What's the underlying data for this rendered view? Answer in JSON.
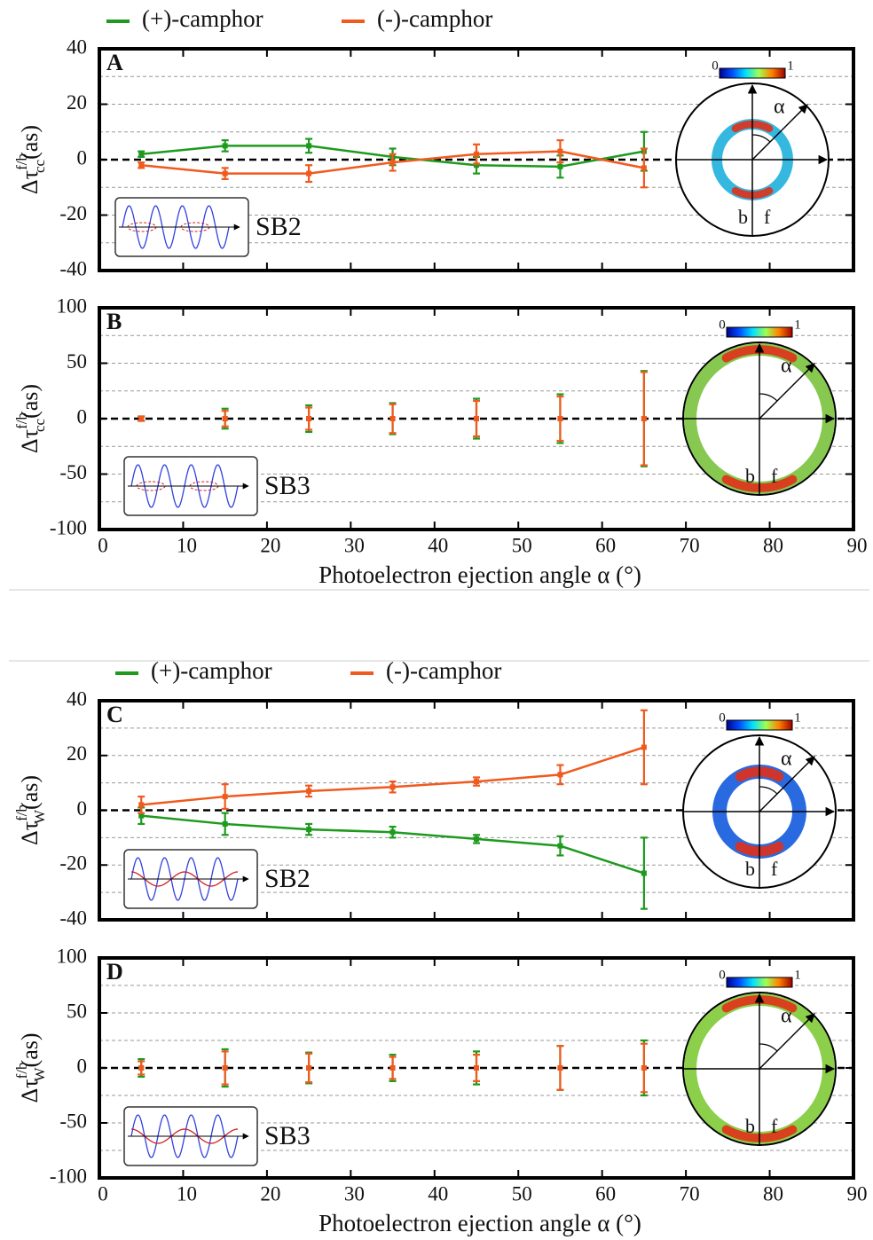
{
  "chart_data": [
    {
      "type": "line",
      "panel_label": "A",
      "ylabel": {
        "symbol": "Δτ",
        "sup": "f/b",
        "sub": "cc",
        "unit": "(as)"
      },
      "inset_text": "SB2",
      "colorbar_labels": [
        "0",
        "1"
      ],
      "inset_labels": [
        "α",
        "b",
        "f"
      ],
      "x": [
        5,
        15,
        25,
        35,
        45,
        55,
        65
      ],
      "series": [
        {
          "name": "(+)-camphor",
          "color": "#1e9a1e",
          "values": [
            2,
            5,
            5,
            1,
            -2,
            -2.5,
            3
          ],
          "errors": [
            1,
            2,
            2.5,
            3,
            3,
            4,
            7
          ]
        },
        {
          "name": "(-)-camphor",
          "color": "#f05a1e",
          "values": [
            -2,
            -5,
            -5,
            -1,
            2,
            3,
            -3
          ],
          "errors": [
            1,
            2,
            3,
            3,
            3.5,
            4,
            7
          ]
        }
      ],
      "xlim": [
        0,
        90
      ],
      "xticks": [
        0,
        10,
        20,
        30,
        40,
        50,
        60,
        70,
        80,
        90
      ],
      "xtick_labels": false,
      "ylim": [
        -40,
        40
      ],
      "yticks": [
        -40,
        -20,
        0,
        20,
        40
      ],
      "grid": true
    },
    {
      "type": "errorbar",
      "panel_label": "B",
      "ylabel": {
        "symbol": "Δτ",
        "sup": "f/b",
        "sub": "cc",
        "unit": "(as)"
      },
      "inset_text": "SB3",
      "colorbar_labels": [
        "0",
        "1"
      ],
      "inset_labels": [
        "α",
        "b",
        "f"
      ],
      "x": [
        5,
        15,
        25,
        35,
        45,
        55,
        65
      ],
      "series": [
        {
          "color": "#1e9a1e",
          "values": [
            0,
            0,
            0,
            0,
            0,
            0,
            0
          ],
          "errors": [
            2,
            9,
            12,
            14,
            18,
            22,
            43
          ]
        },
        {
          "color": "#f05a1e",
          "values": [
            0,
            0,
            0,
            0,
            0,
            0,
            0
          ],
          "errors": [
            2,
            7,
            10,
            13,
            16,
            20,
            42
          ]
        }
      ],
      "xlim": [
        0,
        90
      ],
      "xticks": [
        0,
        10,
        20,
        30,
        40,
        50,
        60,
        70,
        80,
        90
      ],
      "xtick_labels": true,
      "xlabel": "Photoelectron ejection angle α (°)",
      "ylim": [
        -100,
        100
      ],
      "yticks": [
        -100,
        -50,
        0,
        50,
        100
      ],
      "grid": true
    },
    {
      "type": "line",
      "panel_label": "C",
      "ylabel": {
        "symbol": "Δτ",
        "sup": "f/b",
        "sub": "W",
        "unit": "(as)"
      },
      "inset_text": "SB2",
      "colorbar_labels": [
        "0",
        "1"
      ],
      "inset_labels": [
        "α",
        "b",
        "f"
      ],
      "x": [
        5,
        15,
        25,
        35,
        45,
        55,
        65
      ],
      "series": [
        {
          "name": "(+)-camphor",
          "color": "#1e9a1e",
          "values": [
            -2,
            -5,
            -7,
            -8,
            -10.5,
            -13,
            -23
          ],
          "errors": [
            3,
            4,
            2,
            2,
            1.5,
            3.5,
            13
          ]
        },
        {
          "name": "(-)-camphor",
          "color": "#f05a1e",
          "values": [
            2,
            5,
            7,
            8.5,
            10.5,
            13,
            23
          ],
          "errors": [
            3,
            4.5,
            2,
            2,
            1.5,
            3.5,
            13.5
          ]
        }
      ],
      "xlim": [
        0,
        90
      ],
      "xticks": [
        0,
        10,
        20,
        30,
        40,
        50,
        60,
        70,
        80,
        90
      ],
      "xtick_labels": false,
      "ylim": [
        -40,
        40
      ],
      "yticks": [
        -40,
        -20,
        0,
        20,
        40
      ],
      "grid": true
    },
    {
      "type": "errorbar",
      "panel_label": "D",
      "ylabel": {
        "symbol": "Δτ",
        "sup": "f/b",
        "sub": "W",
        "unit": "(as)"
      },
      "inset_text": "SB3",
      "colorbar_labels": [
        "0",
        "1"
      ],
      "inset_labels": [
        "α",
        "b",
        "f"
      ],
      "x": [
        5,
        15,
        25,
        35,
        45,
        55,
        65
      ],
      "series": [
        {
          "color": "#1e9a1e",
          "values": [
            0,
            0,
            0,
            0,
            0,
            0,
            0
          ],
          "errors": [
            8,
            17,
            14,
            12,
            15,
            20,
            25
          ]
        },
        {
          "color": "#f05a1e",
          "values": [
            0,
            0,
            0,
            0,
            0,
            0,
            0
          ],
          "errors": [
            6,
            15,
            13,
            10,
            12,
            20,
            22
          ]
        }
      ],
      "xlim": [
        0,
        90
      ],
      "xticks": [
        0,
        10,
        20,
        30,
        40,
        50,
        60,
        70,
        80,
        90
      ],
      "xtick_labels": true,
      "xlabel": "Photoelectron ejection angle α (°)",
      "ylim": [
        -100,
        100
      ],
      "yticks": [
        -100,
        -50,
        0,
        50,
        100
      ],
      "grid": true
    }
  ]
}
